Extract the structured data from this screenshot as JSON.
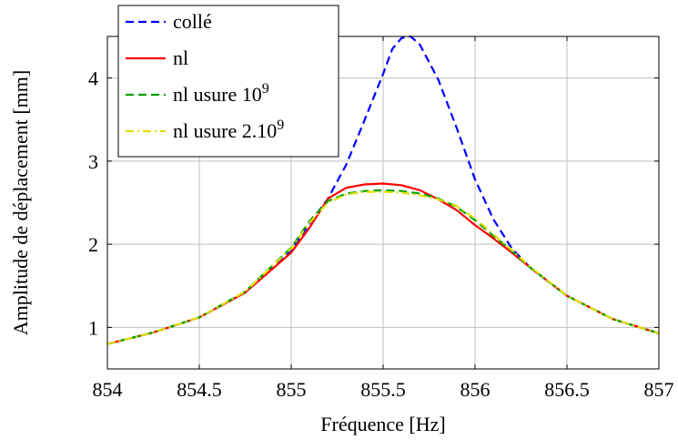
{
  "chart_data": {
    "type": "line",
    "xlabel": "Fréquence [Hz]",
    "ylabel": "Amplitude de déplacement [mm]",
    "xlim": [
      854,
      857
    ],
    "ylim": [
      0.5,
      4.5
    ],
    "xticks": [
      854,
      854.5,
      855,
      855.5,
      856,
      856.5,
      857
    ],
    "xtick_labels": [
      "854",
      "854.5",
      "855",
      "855.5",
      "856",
      "856.5",
      "857"
    ],
    "yticks": [
      1,
      2,
      3,
      4
    ],
    "ytick_labels": [
      "1",
      "2",
      "3",
      "4"
    ],
    "grid": true,
    "legend_position": "top-left",
    "series": [
      {
        "name": "collé",
        "color": "#0000ff",
        "style": "dashed",
        "x": [
          854,
          854.25,
          854.5,
          854.75,
          855,
          855.1,
          855.2,
          855.3,
          855.4,
          855.5,
          855.55,
          855.6,
          855.65,
          855.7,
          855.8,
          855.9,
          856,
          856.1,
          856.2,
          856.3,
          856.5,
          856.75,
          857
        ],
        "y": [
          0.8,
          0.94,
          1.12,
          1.42,
          1.92,
          2.25,
          2.55,
          2.96,
          3.5,
          4.05,
          4.35,
          4.48,
          4.5,
          4.4,
          3.98,
          3.4,
          2.78,
          2.3,
          1.95,
          1.72,
          1.38,
          1.1,
          0.93
        ]
      },
      {
        "name": "nl",
        "color": "#ff0000",
        "style": "solid",
        "x": [
          854,
          854.25,
          854.5,
          854.75,
          855,
          855.1,
          855.2,
          855.3,
          855.4,
          855.5,
          855.6,
          855.7,
          855.8,
          855.9,
          856,
          856.1,
          856.2,
          856.3,
          856.5,
          856.75,
          857
        ],
        "y": [
          0.8,
          0.94,
          1.12,
          1.42,
          1.9,
          2.2,
          2.55,
          2.68,
          2.72,
          2.73,
          2.71,
          2.65,
          2.54,
          2.41,
          2.23,
          2.07,
          1.9,
          1.72,
          1.38,
          1.1,
          0.93
        ]
      },
      {
        "name": "nl usure 10^9",
        "color": "#00a000",
        "style": "dashed",
        "x": [
          854,
          854.25,
          854.5,
          854.75,
          855,
          855.1,
          855.2,
          855.3,
          855.4,
          855.5,
          855.6,
          855.7,
          855.8,
          855.9,
          856,
          856.1,
          856.2,
          856.3,
          856.5,
          856.75,
          857
        ],
        "y": [
          0.8,
          0.94,
          1.12,
          1.43,
          1.96,
          2.28,
          2.52,
          2.61,
          2.64,
          2.65,
          2.64,
          2.61,
          2.55,
          2.45,
          2.29,
          2.1,
          1.92,
          1.72,
          1.38,
          1.1,
          0.93
        ]
      },
      {
        "name": "nl usure 2.10^9",
        "color": "#e0e000",
        "style": "dashdot",
        "x": [
          854,
          854.25,
          854.5,
          854.75,
          855,
          855.1,
          855.2,
          855.3,
          855.4,
          855.5,
          855.6,
          855.7,
          855.8,
          855.9,
          856,
          856.1,
          856.2,
          856.3,
          856.5,
          856.75,
          857
        ],
        "y": [
          0.8,
          0.94,
          1.12,
          1.43,
          1.95,
          2.26,
          2.5,
          2.6,
          2.63,
          2.63,
          2.62,
          2.59,
          2.54,
          2.46,
          2.31,
          2.12,
          1.93,
          1.73,
          1.38,
          1.1,
          0.93
        ]
      }
    ]
  },
  "legend": {
    "entries": [
      {
        "base": "collé",
        "sup": ""
      },
      {
        "base": "nl",
        "sup": ""
      },
      {
        "base": "nl usure 10",
        "sup": "9"
      },
      {
        "base": "nl usure 2.10",
        "sup": "9"
      }
    ]
  }
}
